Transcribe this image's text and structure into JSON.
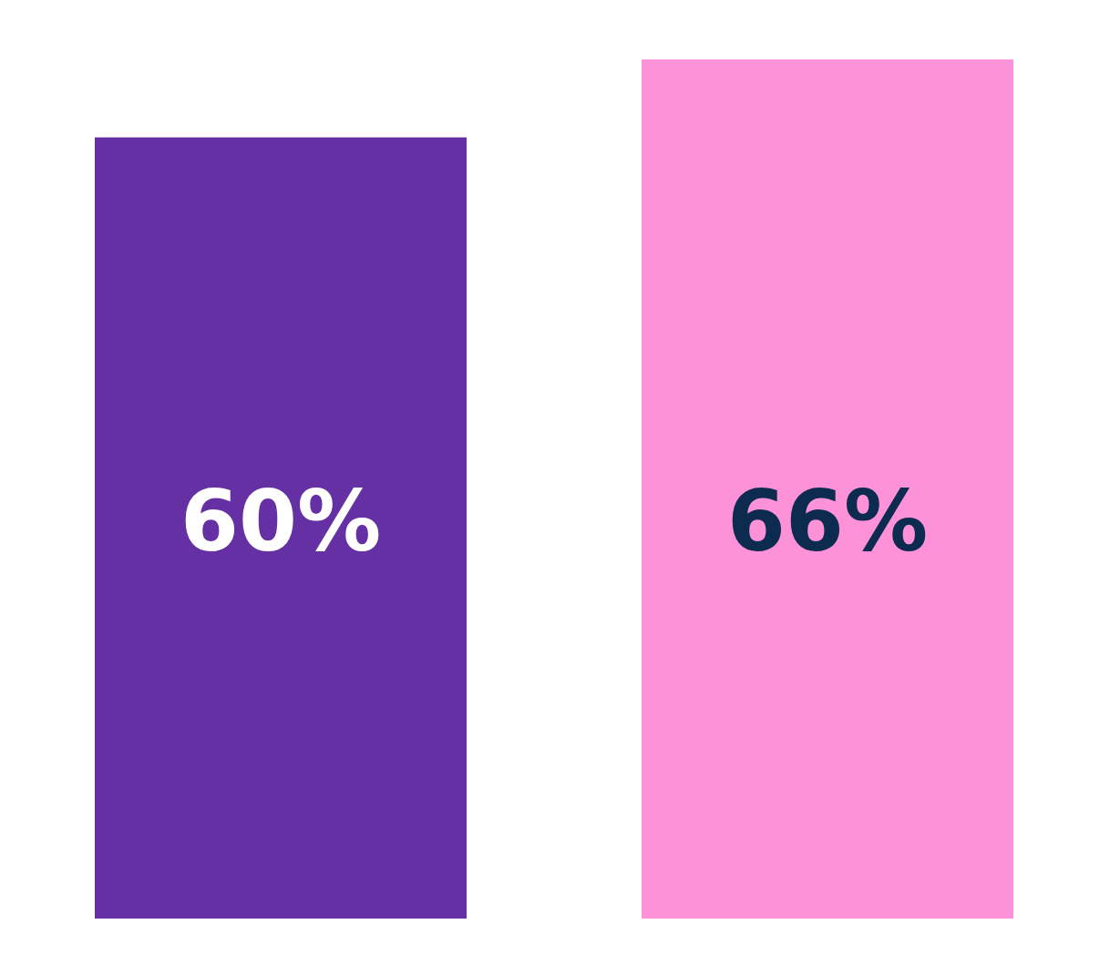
{
  "chart_data": {
    "type": "bar",
    "categories": [
      null,
      null
    ],
    "values": [
      60,
      66
    ],
    "colors": [
      "#6530a3",
      "#fd92d9"
    ],
    "value_labels": [
      "60%",
      "66%"
    ],
    "legend": false
  }
}
